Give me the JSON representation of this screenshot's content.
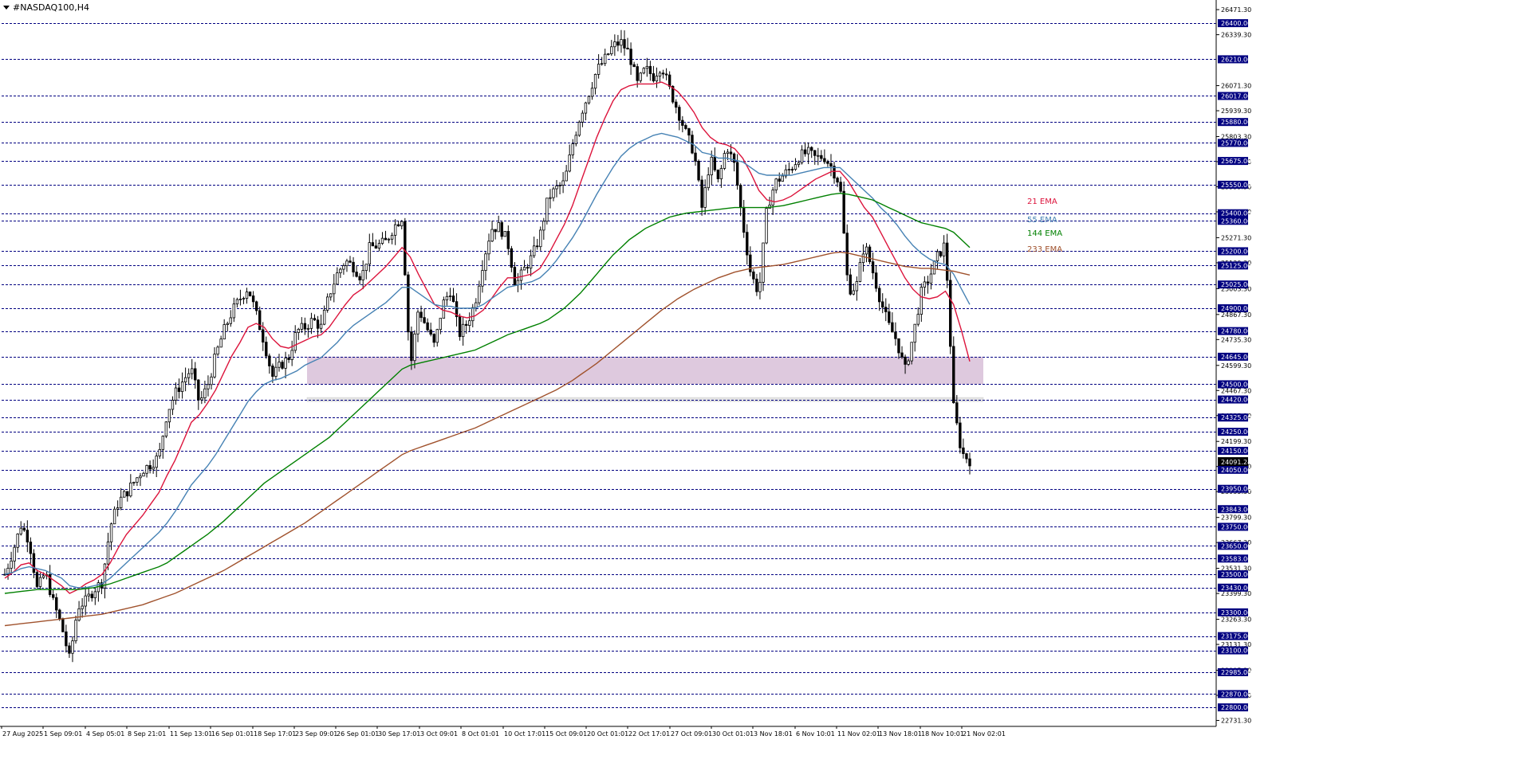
{
  "symbol_label": "#NASDAQ100,H4",
  "chart_data": {
    "type": "candlestick",
    "title": "#NASDAQ100,H4",
    "ylim": [
      22700,
      26480
    ],
    "price_axis_labels": [
      26471.3,
      26339.3,
      26071.3,
      25939.3,
      25803.3,
      25671.3,
      25539.3,
      25407.3,
      25271.3,
      25139.3,
      25003.3,
      24867.3,
      24735.3,
      24599.3,
      24467.3,
      24335.3,
      24199.3,
      24067.3,
      23935.3,
      23799.3,
      23667.3,
      23531.3,
      23399.3,
      23263.3,
      23131.3,
      22995.3,
      22863.3,
      22731.3
    ],
    "level_lines": [
      26400.0,
      26210.0,
      26017.0,
      25880.0,
      25770.0,
      25675.0,
      25550.0,
      25400.0,
      25360.0,
      25200.0,
      25125.0,
      25025.0,
      24900.0,
      24780.0,
      24645.0,
      24500.0,
      24420.0,
      24325.0,
      24250.0,
      24150.0,
      24050.0,
      23950.0,
      23843.0,
      23750.0,
      23650.0,
      23583.0,
      23500.0,
      23430.0,
      23300.0,
      23175.0,
      23100.0,
      22985.0,
      22870.0,
      22800.0
    ],
    "current_price": "24091.24",
    "zone": {
      "from": 24500,
      "to": 24645,
      "color": "#d8bfd8"
    },
    "support_line": 24420,
    "x_labels": [
      "27 Aug 2025",
      "1 Sep 09:01",
      "4 Sep 05:01",
      "8 Sep 21:01",
      "11 Sep 13:01",
      "16 Sep 01:01",
      "18 Sep 17:01",
      "23 Sep 09:01",
      "26 Sep 01:01",
      "30 Sep 17:01",
      "3 Oct 09:01",
      "8 Oct 01:01",
      "10 Oct 17:01",
      "15 Oct 09:01",
      "20 Oct 01:01",
      "22 Oct 17:01",
      "27 Oct 09:01",
      "30 Oct 01:01",
      "3 Nov 18:01",
      "6 Nov 10:01",
      "11 Nov 02:01",
      "13 Nov 18:01",
      "18 Nov 10:01",
      "21 Nov 02:01"
    ],
    "close_path": [
      23500,
      23620,
      23760,
      23680,
      23420,
      23510,
      23350,
      23230,
      23050,
      23330,
      23360,
      23420,
      23460,
      23750,
      23880,
      23930,
      23990,
      24050,
      24080,
      24120,
      24350,
      24450,
      24520,
      24580,
      24400,
      24490,
      24650,
      24780,
      24880,
      24950,
      25010,
      24870,
      24720,
      24540,
      24600,
      24640,
      24780,
      24800,
      24840,
      24800,
      24970,
      25080,
      25150,
      25120,
      25060,
      25220,
      25230,
      25250,
      25330,
      25380,
      24580,
      24900,
      24800,
      24700,
      24920,
      25000,
      24760,
      24820,
      24930,
      25150,
      25320,
      25330,
      25250,
      25020,
      25100,
      25170,
      25280,
      25480,
      25530,
      25560,
      25760,
      25920,
      26030,
      26150,
      26210,
      26280,
      26300,
      26240,
      26080,
      26160,
      26120,
      26180,
      26050,
      25940,
      25820,
      25720,
      25420,
      25690,
      25560,
      25760,
      25650,
      25350,
      25080,
      24980,
      25430,
      25560,
      25600,
      25640,
      25700,
      25720,
      25690,
      25700,
      25640,
      25550,
      25000,
      25010,
      25240,
      25100,
      24940,
      24810,
      24730,
      24570,
      24750,
      24980,
      25060,
      25170,
      25240,
      24380,
      24140,
      24100
    ],
    "series": [
      {
        "name": "21 EMA",
        "color": "#dc143c",
        "values": [
          23480,
          23510,
          23550,
          23560,
          23520,
          23500,
          23470,
          23440,
          23400,
          23420,
          23450,
          23470,
          23500,
          23560,
          23640,
          23710,
          23760,
          23810,
          23870,
          23930,
          24020,
          24100,
          24200,
          24300,
          24340,
          24400,
          24470,
          24560,
          24650,
          24720,
          24800,
          24820,
          24800,
          24740,
          24700,
          24690,
          24710,
          24730,
          24750,
          24760,
          24800,
          24860,
          24920,
          24970,
          25000,
          25040,
          25080,
          25120,
          25170,
          25220,
          25170,
          25080,
          25000,
          24920,
          24890,
          24880,
          24860,
          24850,
          24860,
          24890,
          24950,
          25010,
          25060,
          25060,
          25070,
          25080,
          25110,
          25180,
          25260,
          25340,
          25440,
          25560,
          25680,
          25800,
          25900,
          25990,
          26050,
          26070,
          26080,
          26080,
          26080,
          26090,
          26070,
          26040,
          25990,
          25930,
          25850,
          25800,
          25770,
          25760,
          25740,
          25690,
          25610,
          25520,
          25470,
          25460,
          25470,
          25490,
          25520,
          25550,
          25580,
          25600,
          25620,
          25620,
          25570,
          25500,
          25430,
          25380,
          25300,
          25220,
          25140,
          25060,
          25000,
          24960,
          24950,
          24960,
          24990,
          24920,
          24780,
          24620
        ]
      },
      {
        "name": "55 EMA",
        "color": "#4682b4",
        "values": [
          23500,
          23510,
          23530,
          23540,
          23530,
          23520,
          23500,
          23480,
          23440,
          23430,
          23430,
          23440,
          23450,
          23480,
          23520,
          23560,
          23600,
          23640,
          23680,
          23720,
          23770,
          23830,
          23900,
          23970,
          24020,
          24070,
          24130,
          24200,
          24270,
          24340,
          24410,
          24460,
          24500,
          24520,
          24530,
          24550,
          24570,
          24600,
          24620,
          24640,
          24680,
          24720,
          24770,
          24810,
          24840,
          24870,
          24900,
          24930,
          24970,
          25010,
          25010,
          24980,
          24950,
          24920,
          24910,
          24910,
          24900,
          24900,
          24900,
          24920,
          24950,
          24980,
          25010,
          25020,
          25030,
          25040,
          25060,
          25100,
          25150,
          25210,
          25270,
          25340,
          25420,
          25500,
          25570,
          25640,
          25700,
          25740,
          25770,
          25790,
          25810,
          25820,
          25810,
          25800,
          25780,
          25760,
          25720,
          25710,
          25690,
          25690,
          25680,
          25670,
          25640,
          25610,
          25600,
          25600,
          25600,
          25600,
          25610,
          25620,
          25630,
          25640,
          25640,
          25640,
          25600,
          25560,
          25520,
          25480,
          25430,
          25390,
          25340,
          25280,
          25230,
          25190,
          25160,
          25140,
          25130,
          25080,
          25000,
          24920
        ]
      },
      {
        "name": "144 EMA",
        "color": "#008000",
        "values": [
          23400,
          23405,
          23410,
          23415,
          23420,
          23420,
          23420,
          23420,
          23420,
          23420,
          23425,
          23430,
          23440,
          23450,
          23465,
          23480,
          23495,
          23510,
          23525,
          23540,
          23560,
          23590,
          23620,
          23650,
          23680,
          23710,
          23745,
          23780,
          23820,
          23860,
          23900,
          23940,
          23980,
          24010,
          24040,
          24070,
          24100,
          24130,
          24160,
          24190,
          24220,
          24260,
          24300,
          24340,
          24380,
          24420,
          24460,
          24500,
          24540,
          24580,
          24600,
          24610,
          24620,
          24630,
          24640,
          24650,
          24660,
          24670,
          24680,
          24700,
          24720,
          24740,
          24760,
          24775,
          24790,
          24805,
          24820,
          24840,
          24870,
          24900,
          24940,
          24980,
          25030,
          25080,
          25130,
          25180,
          25220,
          25260,
          25290,
          25320,
          25340,
          25360,
          25380,
          25390,
          25400,
          25405,
          25410,
          25415,
          25420,
          25425,
          25430,
          25430,
          25430,
          25430,
          25430,
          25435,
          25440,
          25450,
          25460,
          25470,
          25480,
          25490,
          25500,
          25505,
          25500,
          25490,
          25480,
          25470,
          25450,
          25430,
          25410,
          25390,
          25370,
          25350,
          25340,
          25330,
          25320,
          25300,
          25260,
          25220
        ]
      },
      {
        "name": "233 EMA",
        "color": "#a0522d",
        "values": [
          23230,
          23235,
          23240,
          23245,
          23250,
          23255,
          23260,
          23265,
          23270,
          23275,
          23280,
          23285,
          23290,
          23300,
          23310,
          23320,
          23330,
          23340,
          23355,
          23370,
          23385,
          23400,
          23420,
          23440,
          23460,
          23480,
          23500,
          23520,
          23545,
          23570,
          23595,
          23620,
          23645,
          23670,
          23695,
          23720,
          23745,
          23770,
          23800,
          23830,
          23860,
          23890,
          23920,
          23950,
          23980,
          24010,
          24040,
          24070,
          24100,
          24130,
          24150,
          24165,
          24180,
          24195,
          24210,
          24225,
          24240,
          24255,
          24270,
          24290,
          24310,
          24330,
          24350,
          24370,
          24390,
          24410,
          24430,
          24450,
          24470,
          24495,
          24520,
          24550,
          24580,
          24610,
          24645,
          24680,
          24715,
          24750,
          24785,
          24820,
          24855,
          24890,
          24920,
          24950,
          24975,
          25000,
          25020,
          25040,
          25060,
          25075,
          25090,
          25100,
          25110,
          25115,
          25120,
          25125,
          25130,
          25140,
          25150,
          25160,
          25170,
          25180,
          25190,
          25195,
          25190,
          25180,
          25170,
          25160,
          25150,
          25140,
          25130,
          25120,
          25115,
          25110,
          25110,
          25105,
          25100,
          25095,
          25085,
          25075
        ]
      }
    ],
    "legend": [
      "21 EMA",
      "55 EMA",
      "144 EMA",
      "233 EMA"
    ],
    "colors": {
      "candle": "#000000",
      "grid_line": "#000080",
      "label_bg": "#000080",
      "label_text": "#ffffff"
    }
  }
}
